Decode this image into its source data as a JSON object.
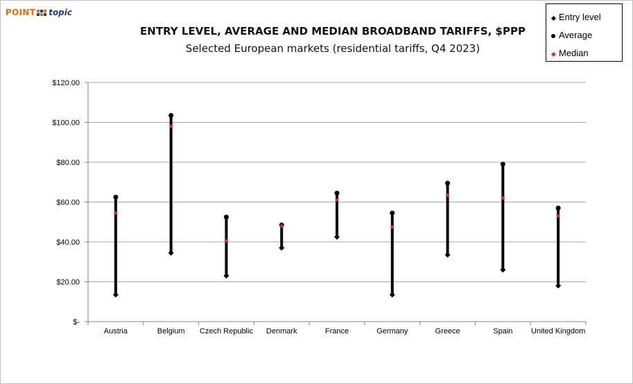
{
  "logo": {
    "part1": "POINT",
    "part2": "topic"
  },
  "chart_data": {
    "type": "range",
    "title": "ENTRY LEVEL, AVERAGE AND MEDIAN BROADBAND TARIFFS, $PPP",
    "subtitle": "Selected European markets (residential tariffs, Q4 2023)",
    "categories": [
      "Austria",
      "Belgium",
      "Czech Republic",
      "Denmark",
      "France",
      "Germany",
      "Greece",
      "Spain",
      "United Kingdom"
    ],
    "series": [
      {
        "name": "Entry level",
        "marker": "diamond",
        "color": "#000000",
        "values": [
          13.5,
          34.5,
          23.0,
          37.0,
          42.5,
          13.5,
          33.5,
          26.0,
          18.0
        ]
      },
      {
        "name": "Average",
        "marker": "circle",
        "color": "#000000",
        "values": [
          62.5,
          103.5,
          52.5,
          48.5,
          64.5,
          54.5,
          69.5,
          79.0,
          57.0
        ]
      },
      {
        "name": "Median",
        "marker": "diamond",
        "color": "#e0302b",
        "values": [
          54.5,
          98.0,
          40.5,
          48.0,
          61.0,
          47.5,
          63.5,
          62.0,
          53.0
        ]
      }
    ],
    "ylim": [
      0,
      120
    ],
    "yticks": [
      0,
      20,
      40,
      60,
      80,
      100,
      120
    ],
    "ytick_labels": [
      "$-",
      "$20.00",
      "$40.00",
      "$60.00",
      "$80.00",
      "$100.00",
      "$120.00"
    ],
    "grid": true,
    "legend_position": "top-right"
  }
}
